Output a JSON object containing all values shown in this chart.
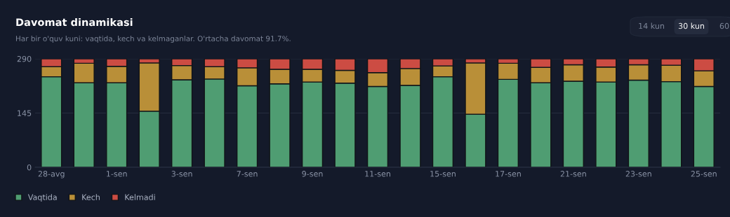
{
  "chart_data": {
    "type": "bar",
    "title": "Davomat dinamikasi",
    "subtitle": "Har bir o'quv kuni: vaqtida, kech va kelmaganlar. O'rtacha davomat 91.7%.",
    "categories": [
      "28-avg",
      null,
      "1-sen",
      null,
      "3-sen",
      null,
      "7-sen",
      null,
      "9-sen",
      null,
      "11-sen",
      null,
      "15-sen",
      null,
      "17-sen",
      null,
      "21-sen",
      null,
      "23-sen",
      null,
      "25-sen"
    ],
    "stacked": true,
    "ylim": [
      0,
      290
    ],
    "yticks": [
      0,
      145,
      290
    ],
    "grid": "y",
    "legend": "bottom",
    "series": [
      {
        "name": "Vaqtida",
        "color": "#4f9d72",
        "values": [
          242,
          226,
          226,
          150,
          234,
          236,
          218,
          223,
          228,
          225,
          216,
          219,
          242,
          142,
          235,
          226,
          230,
          228,
          233,
          229,
          216
        ]
      },
      {
        "name": "Kech",
        "color": "#b98f38",
        "values": [
          27,
          52,
          44,
          129,
          38,
          33,
          48,
          39,
          34,
          34,
          37,
          45,
          29,
          137,
          43,
          41,
          44,
          40,
          41,
          44,
          42
        ]
      },
      {
        "name": "Kelmadi",
        "color": "#cc4c43",
        "values": [
          21,
          12,
          20,
          11,
          18,
          21,
          24,
          28,
          28,
          31,
          37,
          26,
          19,
          11,
          12,
          23,
          16,
          22,
          16,
          17,
          32
        ]
      }
    ],
    "annotations": [
      "14 kun",
      "30 kun",
      "60"
    ]
  }
}
